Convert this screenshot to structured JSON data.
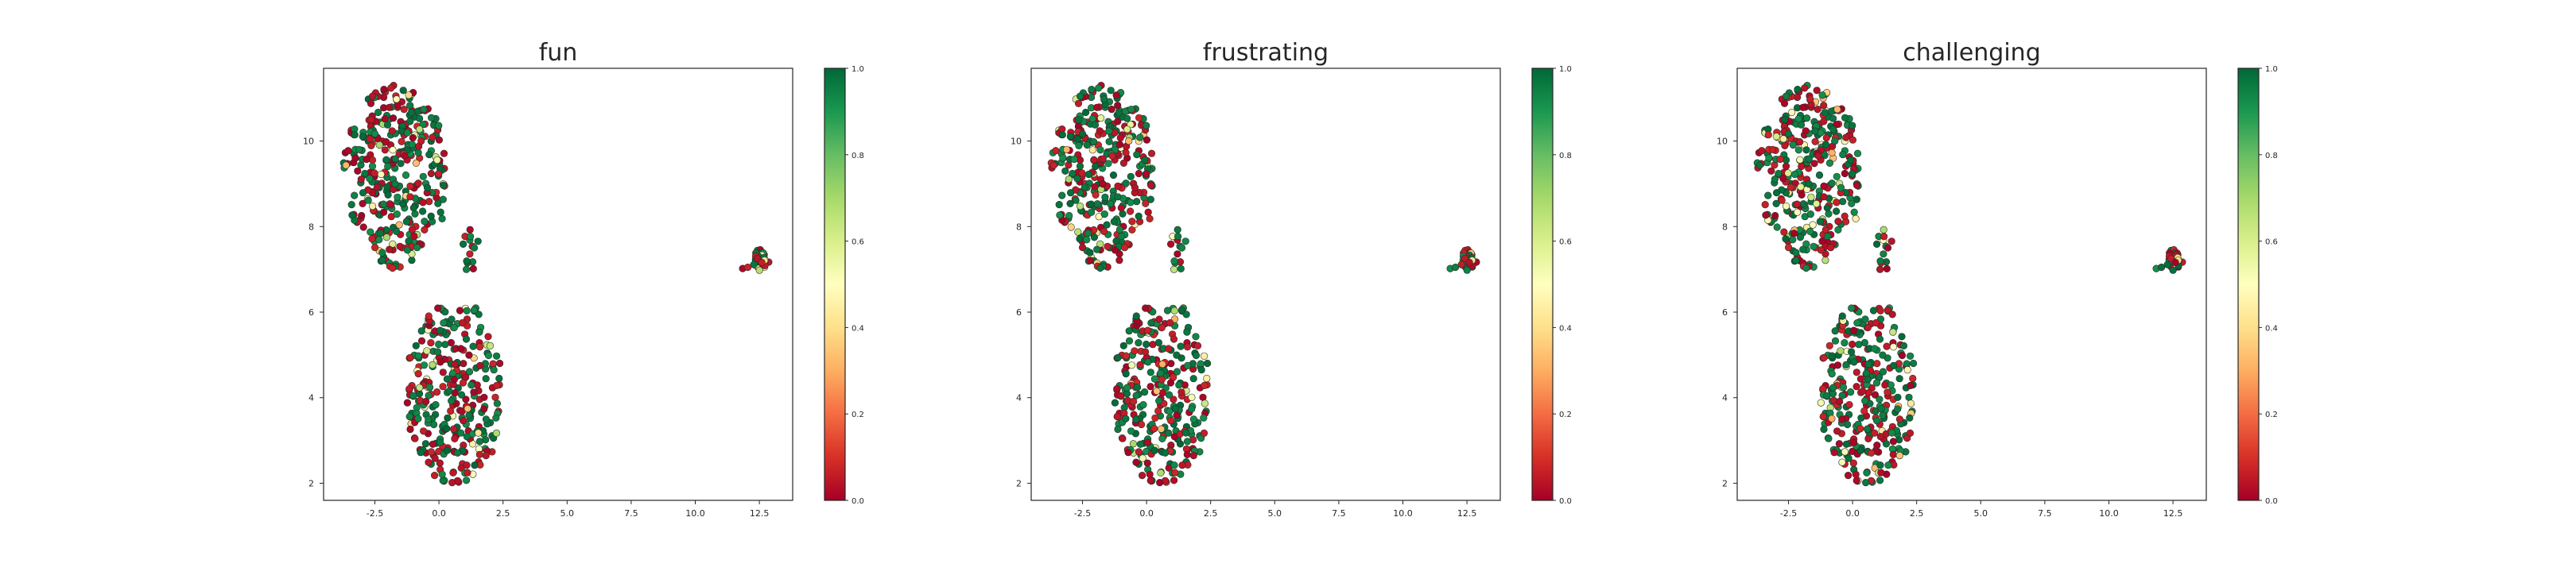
{
  "chart_data": [
    {
      "type": "scatter",
      "title": "fun",
      "xlabel": "",
      "ylabel": "",
      "xlim": [
        -4.5,
        13.8
      ],
      "ylim": [
        1.6,
        11.7
      ],
      "xticks": [
        "-2.5",
        "0.0",
        "2.5",
        "5.0",
        "7.5",
        "10.0",
        "12.5"
      ],
      "yticks": [
        "2",
        "4",
        "6",
        "8",
        "10"
      ],
      "grid": false,
      "colorbar": {
        "range": [
          0.0,
          1.0
        ],
        "ticks": [
          "0.0",
          "0.2",
          "0.4",
          "0.6",
          "0.8",
          "1.0"
        ],
        "colormap": "RdYlGn"
      },
      "points_per_panel_estimate": 700,
      "clusters": [
        {
          "x": -1.7,
          "y": 9.2,
          "region": "upper-left blob",
          "approx_extent": {
            "x": [
              -3.8,
              0.5
            ],
            "y": [
              6.9,
              11.2
            ]
          }
        },
        {
          "x": 0.5,
          "y": 3.8,
          "region": "lower blob",
          "approx_extent": {
            "x": [
              -1.2,
              2.7
            ],
            "y": [
              2.0,
              6.6
            ]
          }
        },
        {
          "x": 1.3,
          "y": 7.4,
          "region": "small middle group",
          "approx_extent": {
            "x": [
              0.8,
              1.7
            ],
            "y": [
              6.9,
              7.8
            ]
          }
        },
        {
          "x": 12.5,
          "y": 7.2,
          "region": "right cluster",
          "approx_extent": {
            "x": [
              11.8,
              12.9
            ],
            "y": [
              6.9,
              7.6
            ]
          }
        }
      ],
      "value_mix_note": "values are mostly near 0 (red) or near 1 (green), with few mid values (yellow)"
    },
    {
      "type": "scatter",
      "title": "frustrating",
      "xlabel": "",
      "ylabel": "",
      "xlim": [
        -4.5,
        13.8
      ],
      "ylim": [
        1.6,
        11.7
      ],
      "xticks": [
        "-2.5",
        "0.0",
        "2.5",
        "5.0",
        "7.5",
        "10.0",
        "12.5"
      ],
      "yticks": [
        "2",
        "4",
        "6",
        "8",
        "10"
      ],
      "grid": false,
      "colorbar": {
        "range": [
          0.0,
          1.0
        ],
        "ticks": [
          "0.0",
          "0.2",
          "0.4",
          "0.6",
          "0.8",
          "1.0"
        ],
        "colormap": "RdYlGn"
      },
      "points_per_panel_estimate": 700,
      "clusters": [
        {
          "x": -1.7,
          "y": 9.2,
          "region": "upper-left blob",
          "approx_extent": {
            "x": [
              -3.8,
              0.5
            ],
            "y": [
              6.9,
              11.2
            ]
          }
        },
        {
          "x": 0.5,
          "y": 3.8,
          "region": "lower blob",
          "approx_extent": {
            "x": [
              -1.2,
              2.7
            ],
            "y": [
              2.0,
              6.6
            ]
          }
        },
        {
          "x": 1.3,
          "y": 7.4,
          "region": "small middle group",
          "approx_extent": {
            "x": [
              0.8,
              1.7
            ],
            "y": [
              6.9,
              7.8
            ]
          }
        },
        {
          "x": 12.5,
          "y": 7.2,
          "region": "right cluster",
          "approx_extent": {
            "x": [
              11.8,
              12.9
            ],
            "y": [
              6.9,
              7.6
            ]
          }
        }
      ],
      "value_mix_note": "values are mostly near 0 (red) or near 1 (green), with few mid values (yellow)"
    },
    {
      "type": "scatter",
      "title": "challenging",
      "xlabel": "",
      "ylabel": "",
      "xlim": [
        -4.5,
        13.8
      ],
      "ylim": [
        1.6,
        11.7
      ],
      "xticks": [
        "-2.5",
        "0.0",
        "2.5",
        "5.0",
        "7.5",
        "10.0",
        "12.5"
      ],
      "yticks": [
        "2",
        "4",
        "6",
        "8",
        "10"
      ],
      "grid": false,
      "colorbar": {
        "range": [
          0.0,
          1.0
        ],
        "ticks": [
          "0.0",
          "0.2",
          "0.4",
          "0.6",
          "0.8",
          "1.0"
        ],
        "colormap": "RdYlGn"
      },
      "points_per_panel_estimate": 700,
      "clusters": [
        {
          "x": -1.7,
          "y": 9.2,
          "region": "upper-left blob",
          "approx_extent": {
            "x": [
              -3.8,
              0.5
            ],
            "y": [
              6.9,
              11.2
            ]
          }
        },
        {
          "x": 0.5,
          "y": 3.8,
          "region": "lower blob",
          "approx_extent": {
            "x": [
              -1.2,
              2.7
            ],
            "y": [
              2.0,
              6.6
            ]
          }
        },
        {
          "x": 1.3,
          "y": 7.4,
          "region": "small middle group",
          "approx_extent": {
            "x": [
              0.8,
              1.7
            ],
            "y": [
              6.9,
              7.8
            ]
          }
        },
        {
          "x": 12.5,
          "y": 7.2,
          "region": "right cluster",
          "approx_extent": {
            "x": [
              11.8,
              12.9
            ],
            "y": [
              6.9,
              7.6
            ]
          }
        }
      ],
      "value_mix_note": "values are mostly near 0 (red) or near 1 (green), with few mid values (yellow)"
    }
  ],
  "colors": {
    "red": "#a50026",
    "orange": "#f46d43",
    "yellow": "#ffffbf",
    "lightgreen": "#a6d96a",
    "green": "#006837"
  }
}
